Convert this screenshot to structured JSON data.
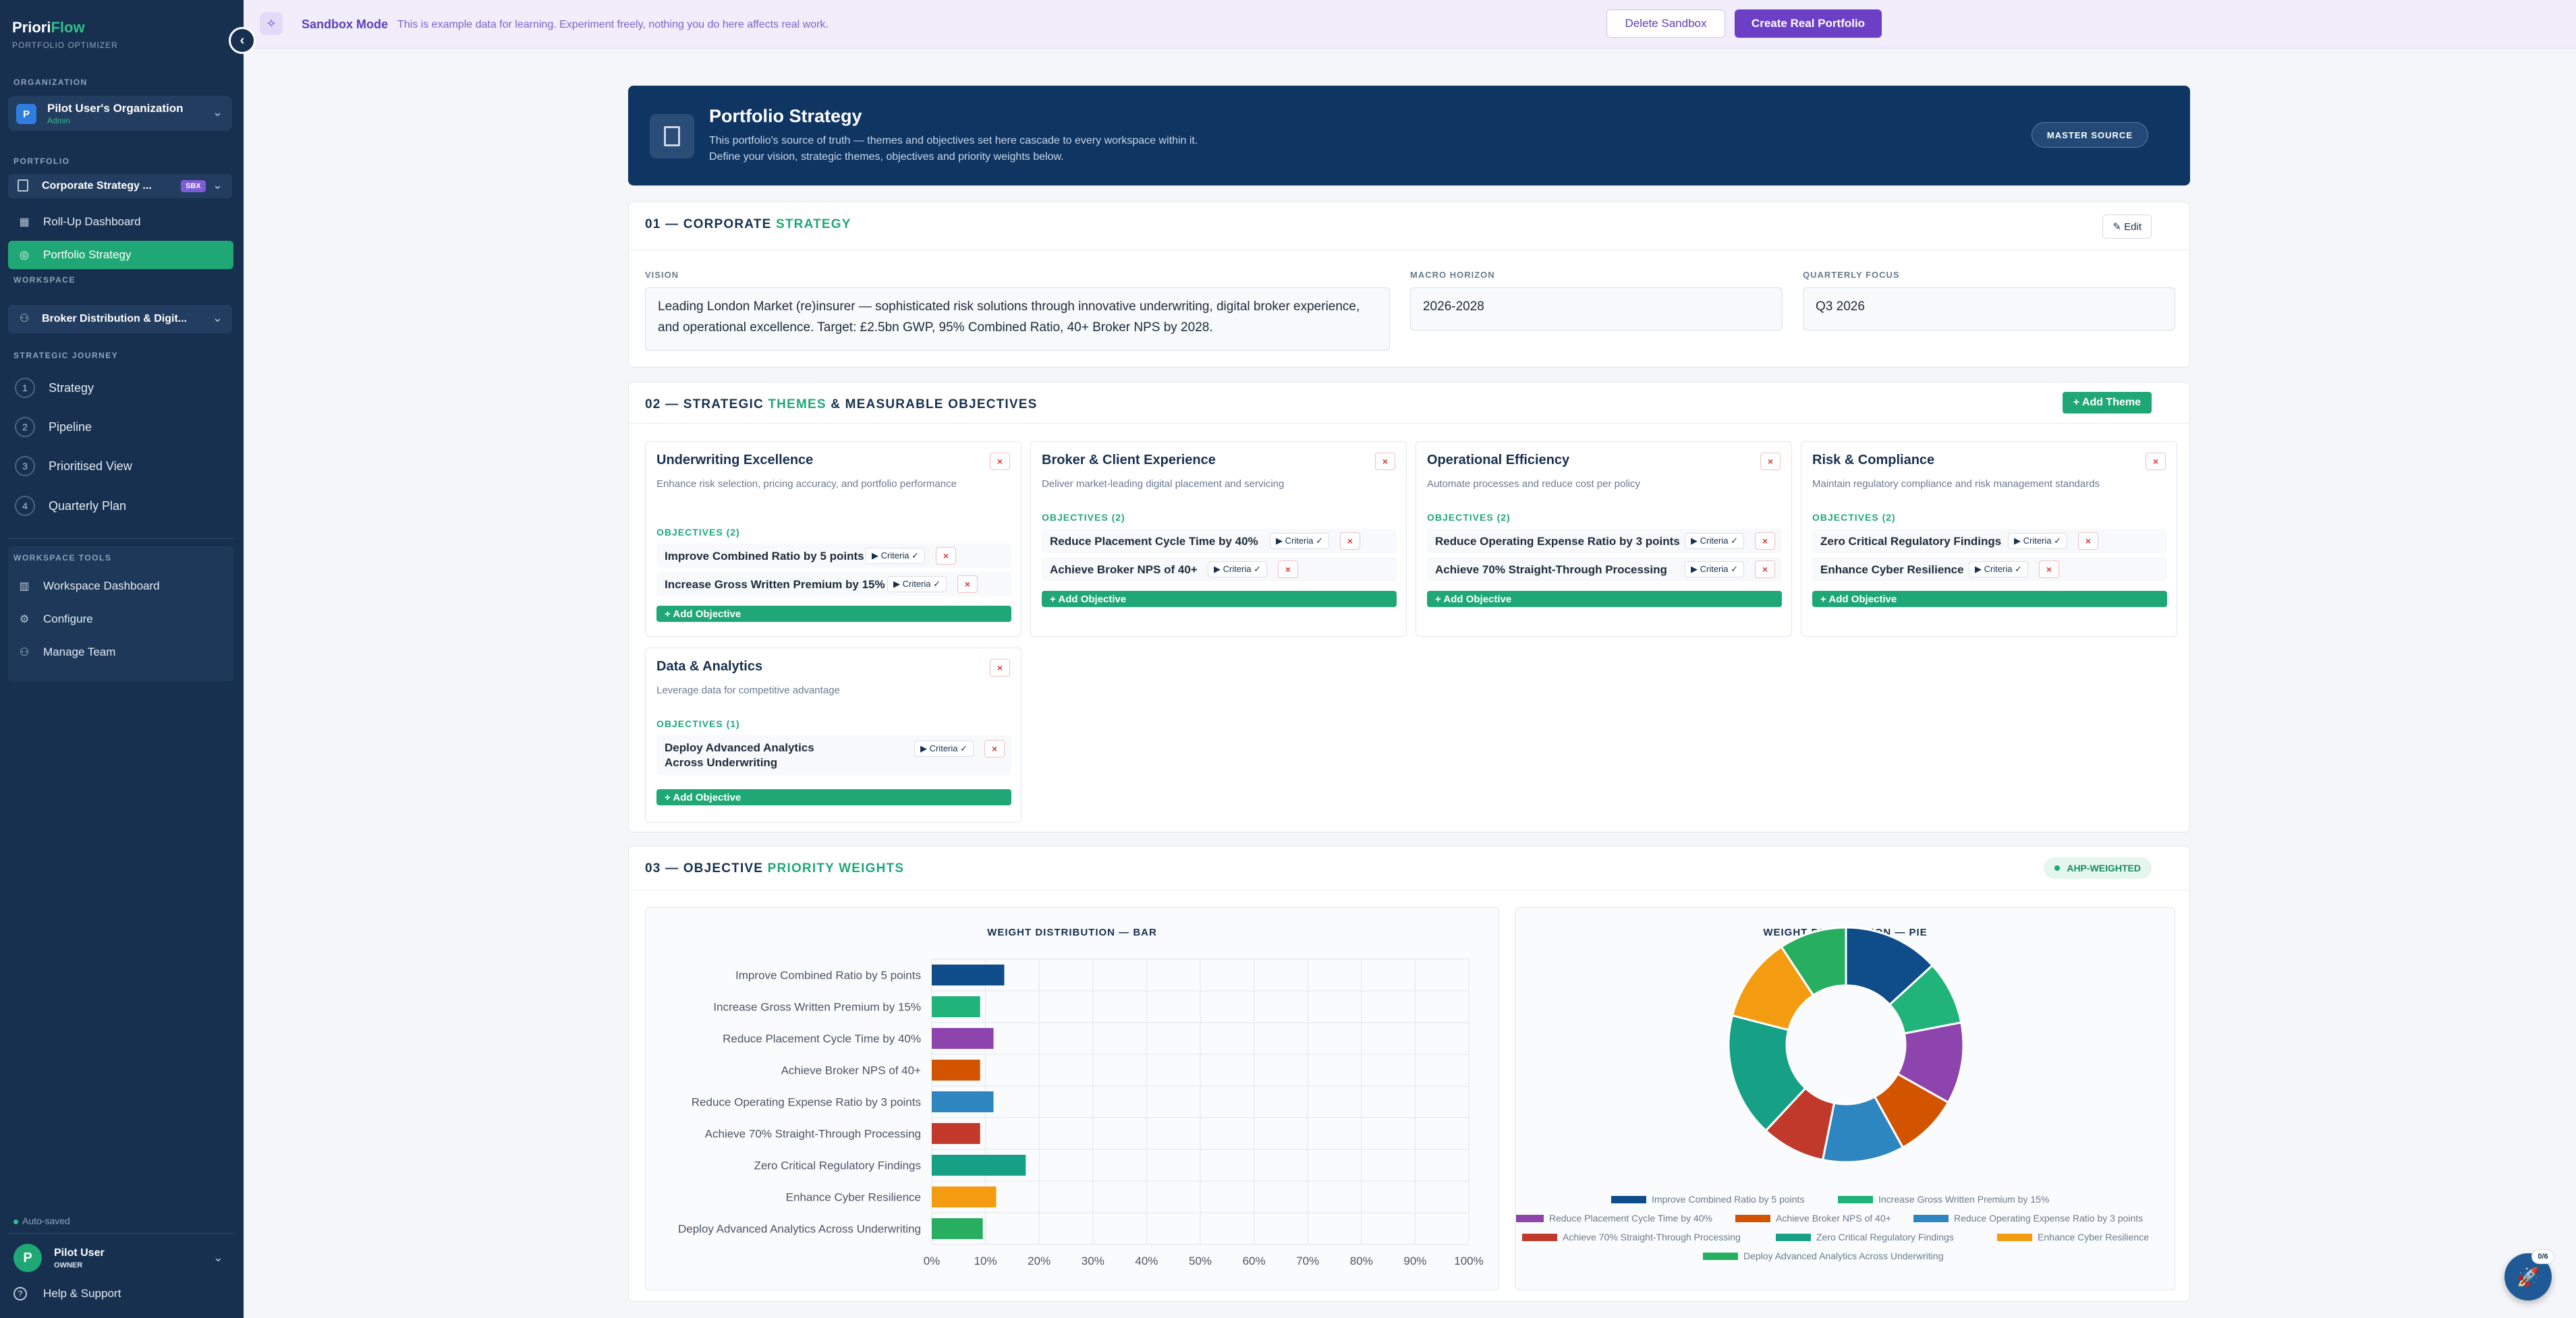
{
  "brand": {
    "name_a": "Priori",
    "name_b": "Flow",
    "subtitle": "PORTFOLIO OPTIMIZER"
  },
  "sidebar": {
    "org_label": "ORGANIZATION",
    "org_avatar": "P",
    "org_name": "Pilot User's Organization",
    "org_role": "Admin",
    "portfolio_label": "PORTFOLIO",
    "portfolio_name": "Corporate Strategy ...",
    "portfolio_badge": "SBX",
    "nav": [
      {
        "label": "Roll-Up Dashboard",
        "icon": "grid-icon"
      },
      {
        "label": "Portfolio Strategy",
        "icon": "target-icon"
      }
    ],
    "workspace_label": "WORKSPACE",
    "workspace_name": "Broker Distribution & Digit...",
    "journey_label": "STRATEGIC JOURNEY",
    "journey": [
      {
        "num": "1",
        "label": "Strategy"
      },
      {
        "num": "2",
        "label": "Pipeline"
      },
      {
        "num": "3",
        "label": "Prioritised View"
      },
      {
        "num": "4",
        "label": "Quarterly Plan"
      }
    ],
    "tools_label": "WORKSPACE TOOLS",
    "tools": [
      {
        "label": "Workspace Dashboard",
        "icon": "chart-icon"
      },
      {
        "label": "Configure",
        "icon": "gear-icon"
      },
      {
        "label": "Manage Team",
        "icon": "users-icon"
      }
    ],
    "autosave": "Auto-saved",
    "user_avatar": "P",
    "user_name": "Pilot User",
    "user_role": "OWNER",
    "help": "Help & Support"
  },
  "topbar": {
    "title": "Sandbox Mode",
    "text": "This is example data for learning. Experiment freely, nothing you do here affects real work.",
    "delete_label": "Delete Sandbox",
    "create_label": "Create Real Portfolio"
  },
  "hero": {
    "title": "Portfolio Strategy",
    "line1": "This portfolio's source of truth — themes and objectives set here cascade to every workspace within it.",
    "line2": "Define your vision, strategic themes, objectives and priority weights below.",
    "badge": "MASTER SOURCE"
  },
  "section1": {
    "num": "01 — CORPORATE",
    "accent": "STRATEGY",
    "edit_label": "✎ Edit",
    "vision_label": "VISION",
    "vision": "Leading London Market (re)insurer — sophisticated risk solutions through innovative underwriting, digital broker experience, and operational excellence. Target: £2.5bn GWP, 95% Combined Ratio, 40+ Broker NPS by 2028.",
    "horizon_label": "MACRO HORIZON",
    "horizon": "2026-2028",
    "focus_label": "QUARTERLY FOCUS",
    "focus": "Q3 2026"
  },
  "section2": {
    "num": "02 — STRATEGIC",
    "accent": "THEMES",
    "rest": "& MEASURABLE OBJECTIVES",
    "add_theme": "+ Add Theme",
    "add_objective": "+ Add Objective",
    "criteria": "▶ Criteria ✓",
    "delete": "×",
    "themes": [
      {
        "title": "Underwriting Excellence",
        "desc": "Enhance risk selection, pricing accuracy, and portfolio performance",
        "obj_head": "OBJECTIVES (2)",
        "objectives": [
          "Improve Combined Ratio by 5 points",
          "Increase Gross Written Premium by 15%"
        ]
      },
      {
        "title": "Broker & Client Experience",
        "desc": "Deliver market-leading digital placement and servicing",
        "obj_head": "OBJECTIVES (2)",
        "objectives": [
          "Reduce Placement Cycle Time by 40%",
          "Achieve Broker NPS of 40+"
        ]
      },
      {
        "title": "Operational Efficiency",
        "desc": "Automate processes and reduce cost per policy",
        "obj_head": "OBJECTIVES (2)",
        "objectives": [
          "Reduce Operating Expense Ratio by 3 points",
          "Achieve 70% Straight-Through Processing"
        ]
      },
      {
        "title": "Risk & Compliance",
        "desc": "Maintain regulatory compliance and risk management standards",
        "obj_head": "OBJECTIVES (2)",
        "objectives": [
          "Zero Critical Regulatory Findings",
          "Enhance Cyber Resilience"
        ]
      },
      {
        "title": "Data & Analytics",
        "desc": "Leverage data for competitive advantage",
        "obj_head": "OBJECTIVES (1)",
        "objectives": [
          "Deploy Advanced Analytics Across Underwriting"
        ]
      }
    ]
  },
  "section3": {
    "num": "03 — OBJECTIVE",
    "accent": "PRIORITY WEIGHTS",
    "badge": "AHP-WEIGHTED",
    "bar_title": "WEIGHT DISTRIBUTION — BAR",
    "pie_title": "WEIGHT DISTRIBUTION — PIE"
  },
  "fab_badge": "0/6",
  "chart_data": [
    {
      "type": "bar",
      "title": "WEIGHT DISTRIBUTION — BAR",
      "orientation": "horizontal",
      "categories": [
        "Improve Combined Ratio by 5 points",
        "Increase Gross Written Premium by 15%",
        "Reduce Placement Cycle Time by 40%",
        "Achieve Broker NPS of 40+",
        "Reduce Operating Expense Ratio by 3 points",
        "Achieve 70% Straight-Through Processing",
        "Zero Critical Regulatory Findings",
        "Enhance Cyber Resilience",
        "Deploy Advanced Analytics Across Underwriting"
      ],
      "values": [
        13.5,
        9,
        11.5,
        9,
        11.5,
        9,
        17.5,
        12,
        9.5
      ],
      "colors": [
        "#0f4c8a",
        "#20b37a",
        "#8e44ad",
        "#d35400",
        "#2e86c1",
        "#c0392b",
        "#16a085",
        "#f39c12",
        "#27ae60"
      ],
      "xlim": [
        0,
        100
      ],
      "xticks": [
        "0%",
        "10%",
        "20%",
        "30%",
        "40%",
        "50%",
        "60%",
        "70%",
        "80%",
        "90%",
        "100%"
      ],
      "grid": true
    },
    {
      "type": "pie",
      "title": "WEIGHT DISTRIBUTION — PIE",
      "donut": true,
      "labels": [
        "Improve Combined Ratio by 5 points",
        "Increase Gross Written Premium by 15%",
        "Reduce Placement Cycle Time by 40%",
        "Achieve Broker NPS of 40+",
        "Reduce Operating Expense Ratio by 3 points",
        "Achieve 70% Straight-Through Processing",
        "Zero Critical Regulatory Findings",
        "Enhance Cyber Resilience",
        "Deploy Advanced Analytics Across Underwriting"
      ],
      "values": [
        13.5,
        9,
        11.5,
        9,
        11.5,
        9,
        17.5,
        12,
        9.5
      ],
      "colors": [
        "#0f4c8a",
        "#20b37a",
        "#8e44ad",
        "#d35400",
        "#2e86c1",
        "#c0392b",
        "#16a085",
        "#f39c12",
        "#27ae60"
      ],
      "legend": "bottom"
    }
  ]
}
